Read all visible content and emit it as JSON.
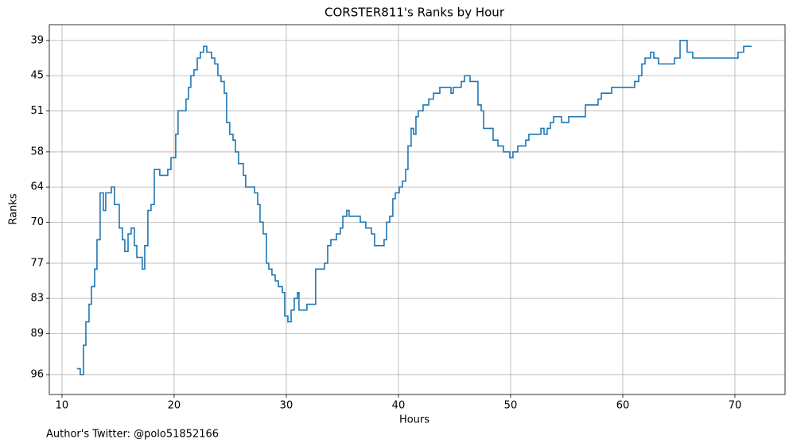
{
  "chart_data": {
    "type": "step",
    "title": "CORSTER811's Ranks by Hour",
    "xlabel": "Hours",
    "ylabel": "Ranks",
    "footer": "Author's Twitter: @polo51852166",
    "color": "#1f77b4",
    "grid": true,
    "xlim": [
      8.87,
      74.47
    ],
    "xticks": [
      10,
      20,
      30,
      40,
      50,
      60,
      70
    ],
    "ylim": [
      99.4,
      36.3
    ],
    "yticks": [
      39,
      45,
      51,
      58,
      64,
      70,
      77,
      83,
      89,
      96
    ],
    "x": [
      11.35,
      11.63,
      11.91,
      12.13,
      12.41,
      12.62,
      12.91,
      13.12,
      13.4,
      13.69,
      13.9,
      14.4,
      14.68,
      15.11,
      15.39,
      15.6,
      15.89,
      16.17,
      16.45,
      16.67,
      17.16,
      17.38,
      17.66,
      17.94,
      18.23,
      18.72,
      19.43,
      19.72,
      20.14,
      20.35,
      21.06,
      21.28,
      21.49,
      21.77,
      22.06,
      22.34,
      22.62,
      22.91,
      23.33,
      23.62,
      23.9,
      24.18,
      24.47,
      24.68,
      24.96,
      25.25,
      25.46,
      25.74,
      26.17,
      26.38,
      27.16,
      27.45,
      27.66,
      27.94,
      28.23,
      28.44,
      28.72,
      29.01,
      29.29,
      29.65,
      29.86,
      30.14,
      30.43,
      30.71,
      30.99,
      31.13,
      31.84,
      32.62,
      33.4,
      33.69,
      33.97,
      34.47,
      34.82,
      35.04,
      35.39,
      35.6,
      36.6,
      37.09,
      37.59,
      37.87,
      38.72,
      38.94,
      39.22,
      39.5,
      39.72,
      40.07,
      40.35,
      40.64,
      40.85,
      41.13,
      41.35,
      41.56,
      41.77,
      42.2,
      42.7,
      43.12,
      43.69,
      44.68,
      44.89,
      45.6,
      45.89,
      46.38,
      47.09,
      47.38,
      47.59,
      48.44,
      48.87,
      49.36,
      49.93,
      50.21,
      50.64,
      51.35,
      51.63,
      52.7,
      52.98,
      53.26,
      53.55,
      53.83,
      54.54,
      55.18,
      56.67,
      57.8,
      58.09,
      59.01,
      61.06,
      61.42,
      61.7,
      61.99,
      62.48,
      62.77,
      63.19,
      64.61,
      65.11,
      65.74,
      66.24,
      70.28,
      70.78,
      71.49
    ],
    "values": [
      95,
      96,
      91,
      87,
      84,
      81,
      78,
      73,
      65,
      68,
      65,
      64,
      67,
      71,
      73,
      75,
      72,
      71,
      74,
      76,
      78,
      74,
      68,
      67,
      61,
      62,
      61,
      59,
      55,
      51,
      49,
      47,
      45,
      44,
      42,
      41,
      40,
      41,
      42,
      43,
      45,
      46,
      48,
      53,
      55,
      56,
      58,
      60,
      62,
      64,
      65,
      67,
      70,
      72,
      77,
      78,
      79,
      80,
      81,
      82,
      86,
      87,
      85,
      83,
      82,
      85,
      84,
      78,
      77,
      74,
      73,
      72,
      71,
      69,
      68,
      69,
      70,
      71,
      72,
      74,
      73,
      70,
      69,
      66,
      65,
      64,
      63,
      61,
      57,
      54,
      55,
      52,
      51,
      50,
      49,
      48,
      47,
      48,
      47,
      46,
      45,
      46,
      50,
      51,
      54,
      56,
      57,
      58,
      59,
      58,
      57,
      56,
      55,
      54,
      55,
      54,
      53,
      52,
      53,
      52,
      50,
      49,
      48,
      47,
      46,
      45,
      43,
      42,
      41,
      42,
      43,
      42,
      39,
      41,
      42,
      41,
      40,
      40
    ]
  }
}
